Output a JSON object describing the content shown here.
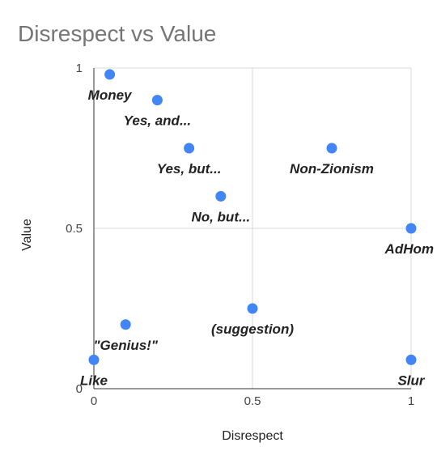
{
  "chart_data": {
    "type": "scatter",
    "title": "Disrespect vs Value",
    "xlabel": "Disrespect",
    "ylabel": "Value",
    "xlim": [
      0,
      1
    ],
    "ylim": [
      0,
      1
    ],
    "xticks": [
      0,
      0.5,
      1
    ],
    "yticks": [
      0,
      0.5,
      1
    ],
    "xtick_labels": [
      "0",
      "0.5",
      "1"
    ],
    "ytick_labels": [
      "0",
      "0.5",
      "1"
    ],
    "grid": true,
    "legend": "none",
    "point_color": "#4285F4",
    "points": [
      {
        "label": "Money",
        "x": 0.05,
        "y": 0.98
      },
      {
        "label": "Yes, and...",
        "x": 0.2,
        "y": 0.9
      },
      {
        "label": "Yes, but...",
        "x": 0.3,
        "y": 0.75
      },
      {
        "label": "Non-Zionism",
        "x": 0.75,
        "y": 0.75
      },
      {
        "label": "No, but...",
        "x": 0.4,
        "y": 0.6
      },
      {
        "label": "AdHom",
        "x": 1.0,
        "y": 0.5
      },
      {
        "label": "(suggestion)",
        "x": 0.5,
        "y": 0.25
      },
      {
        "label": "\"Genius!\"",
        "x": 0.1,
        "y": 0.2
      },
      {
        "label": "Like",
        "x": 0.0,
        "y": 0.09
      },
      {
        "label": "Slur",
        "x": 1.0,
        "y": 0.09
      }
    ]
  }
}
